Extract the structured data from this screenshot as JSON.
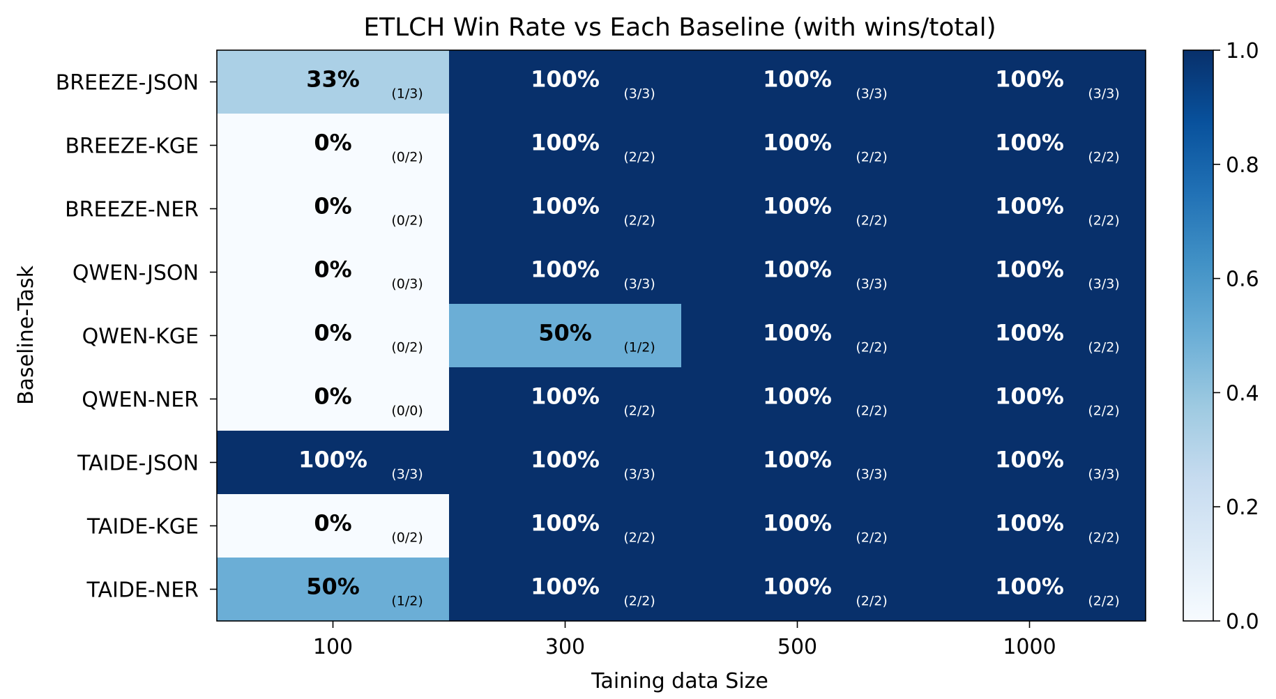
{
  "chart_data": {
    "type": "heatmap",
    "title": "ETLCH Win Rate vs Each Baseline (with wins/total)",
    "xlabel": "Taining data Size",
    "ylabel": "Baseline-Task",
    "x_categories": [
      "100",
      "300",
      "500",
      "1000"
    ],
    "y_categories": [
      "BREEZE-JSON",
      "BREEZE-KGE",
      "BREEZE-NER",
      "QWEN-JSON",
      "QWEN-KGE",
      "QWEN-NER",
      "TAIDE-JSON",
      "TAIDE-KGE",
      "TAIDE-NER"
    ],
    "values": [
      [
        0.3333,
        1.0,
        1.0,
        1.0
      ],
      [
        0.0,
        1.0,
        1.0,
        1.0
      ],
      [
        0.0,
        1.0,
        1.0,
        1.0
      ],
      [
        0.0,
        1.0,
        1.0,
        1.0
      ],
      [
        0.0,
        0.5,
        1.0,
        1.0
      ],
      [
        0.0,
        1.0,
        1.0,
        1.0
      ],
      [
        1.0,
        1.0,
        1.0,
        1.0
      ],
      [
        0.0,
        1.0,
        1.0,
        1.0
      ],
      [
        0.5,
        1.0,
        1.0,
        1.0
      ]
    ],
    "cell_labels": [
      [
        "33%",
        "100%",
        "100%",
        "100%"
      ],
      [
        "0%",
        "100%",
        "100%",
        "100%"
      ],
      [
        "0%",
        "100%",
        "100%",
        "100%"
      ],
      [
        "0%",
        "100%",
        "100%",
        "100%"
      ],
      [
        "0%",
        "50%",
        "100%",
        "100%"
      ],
      [
        "0%",
        "100%",
        "100%",
        "100%"
      ],
      [
        "100%",
        "100%",
        "100%",
        "100%"
      ],
      [
        "0%",
        "100%",
        "100%",
        "100%"
      ],
      [
        "50%",
        "100%",
        "100%",
        "100%"
      ]
    ],
    "cell_fractions": [
      [
        "(1/3)",
        "(3/3)",
        "(3/3)",
        "(3/3)"
      ],
      [
        "(0/2)",
        "(2/2)",
        "(2/2)",
        "(2/2)"
      ],
      [
        "(0/2)",
        "(2/2)",
        "(2/2)",
        "(2/2)"
      ],
      [
        "(0/3)",
        "(3/3)",
        "(3/3)",
        "(3/3)"
      ],
      [
        "(0/2)",
        "(1/2)",
        "(2/2)",
        "(2/2)"
      ],
      [
        "(0/0)",
        "(2/2)",
        "(2/2)",
        "(2/2)"
      ],
      [
        "(3/3)",
        "(3/3)",
        "(3/3)",
        "(3/3)"
      ],
      [
        "(0/2)",
        "(2/2)",
        "(2/2)",
        "(2/2)"
      ],
      [
        "(1/2)",
        "(2/2)",
        "(2/2)",
        "(2/2)"
      ]
    ],
    "colorbar": {
      "min": 0.0,
      "max": 1.0,
      "ticks": [
        "0.0",
        "0.2",
        "0.4",
        "0.6",
        "0.8",
        "1.0"
      ],
      "colormap": "Blues"
    }
  }
}
